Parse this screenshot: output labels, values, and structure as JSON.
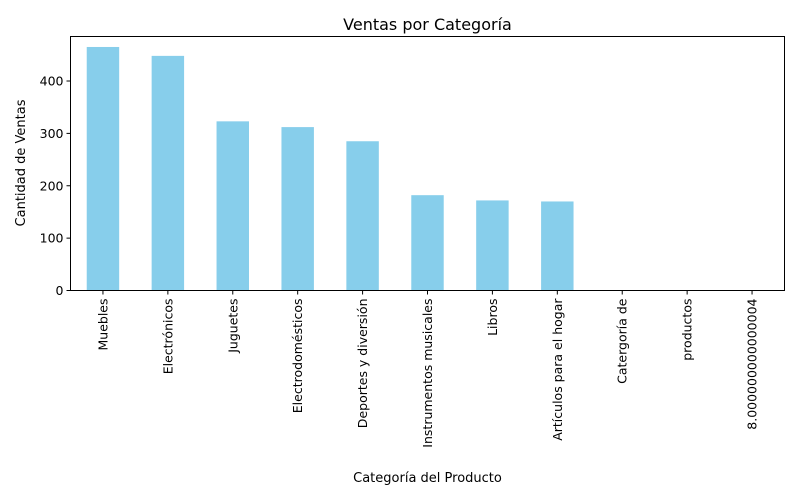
{
  "chart_data": {
    "type": "bar",
    "title": "Ventas por Categoría",
    "xlabel": "Categoría del Producto",
    "ylabel": "Cantidad de Ventas",
    "categories": [
      "Muebles",
      "Electrónicos",
      "Juguetes",
      "Electrodomésticos",
      "Deportes y diversión",
      "Instrumentos musicales",
      "Libros",
      "Artículos para el hogar",
      "Catergoría de",
      "productos",
      "8.000000000000004"
    ],
    "values": [
      465,
      448,
      323,
      312,
      285,
      182,
      172,
      170,
      0,
      0,
      0
    ],
    "ylim": [
      0,
      485
    ],
    "yticks": [
      0,
      100,
      200,
      300,
      400
    ],
    "grid": false,
    "legend": "none",
    "bar_color": "#87CEEB"
  }
}
